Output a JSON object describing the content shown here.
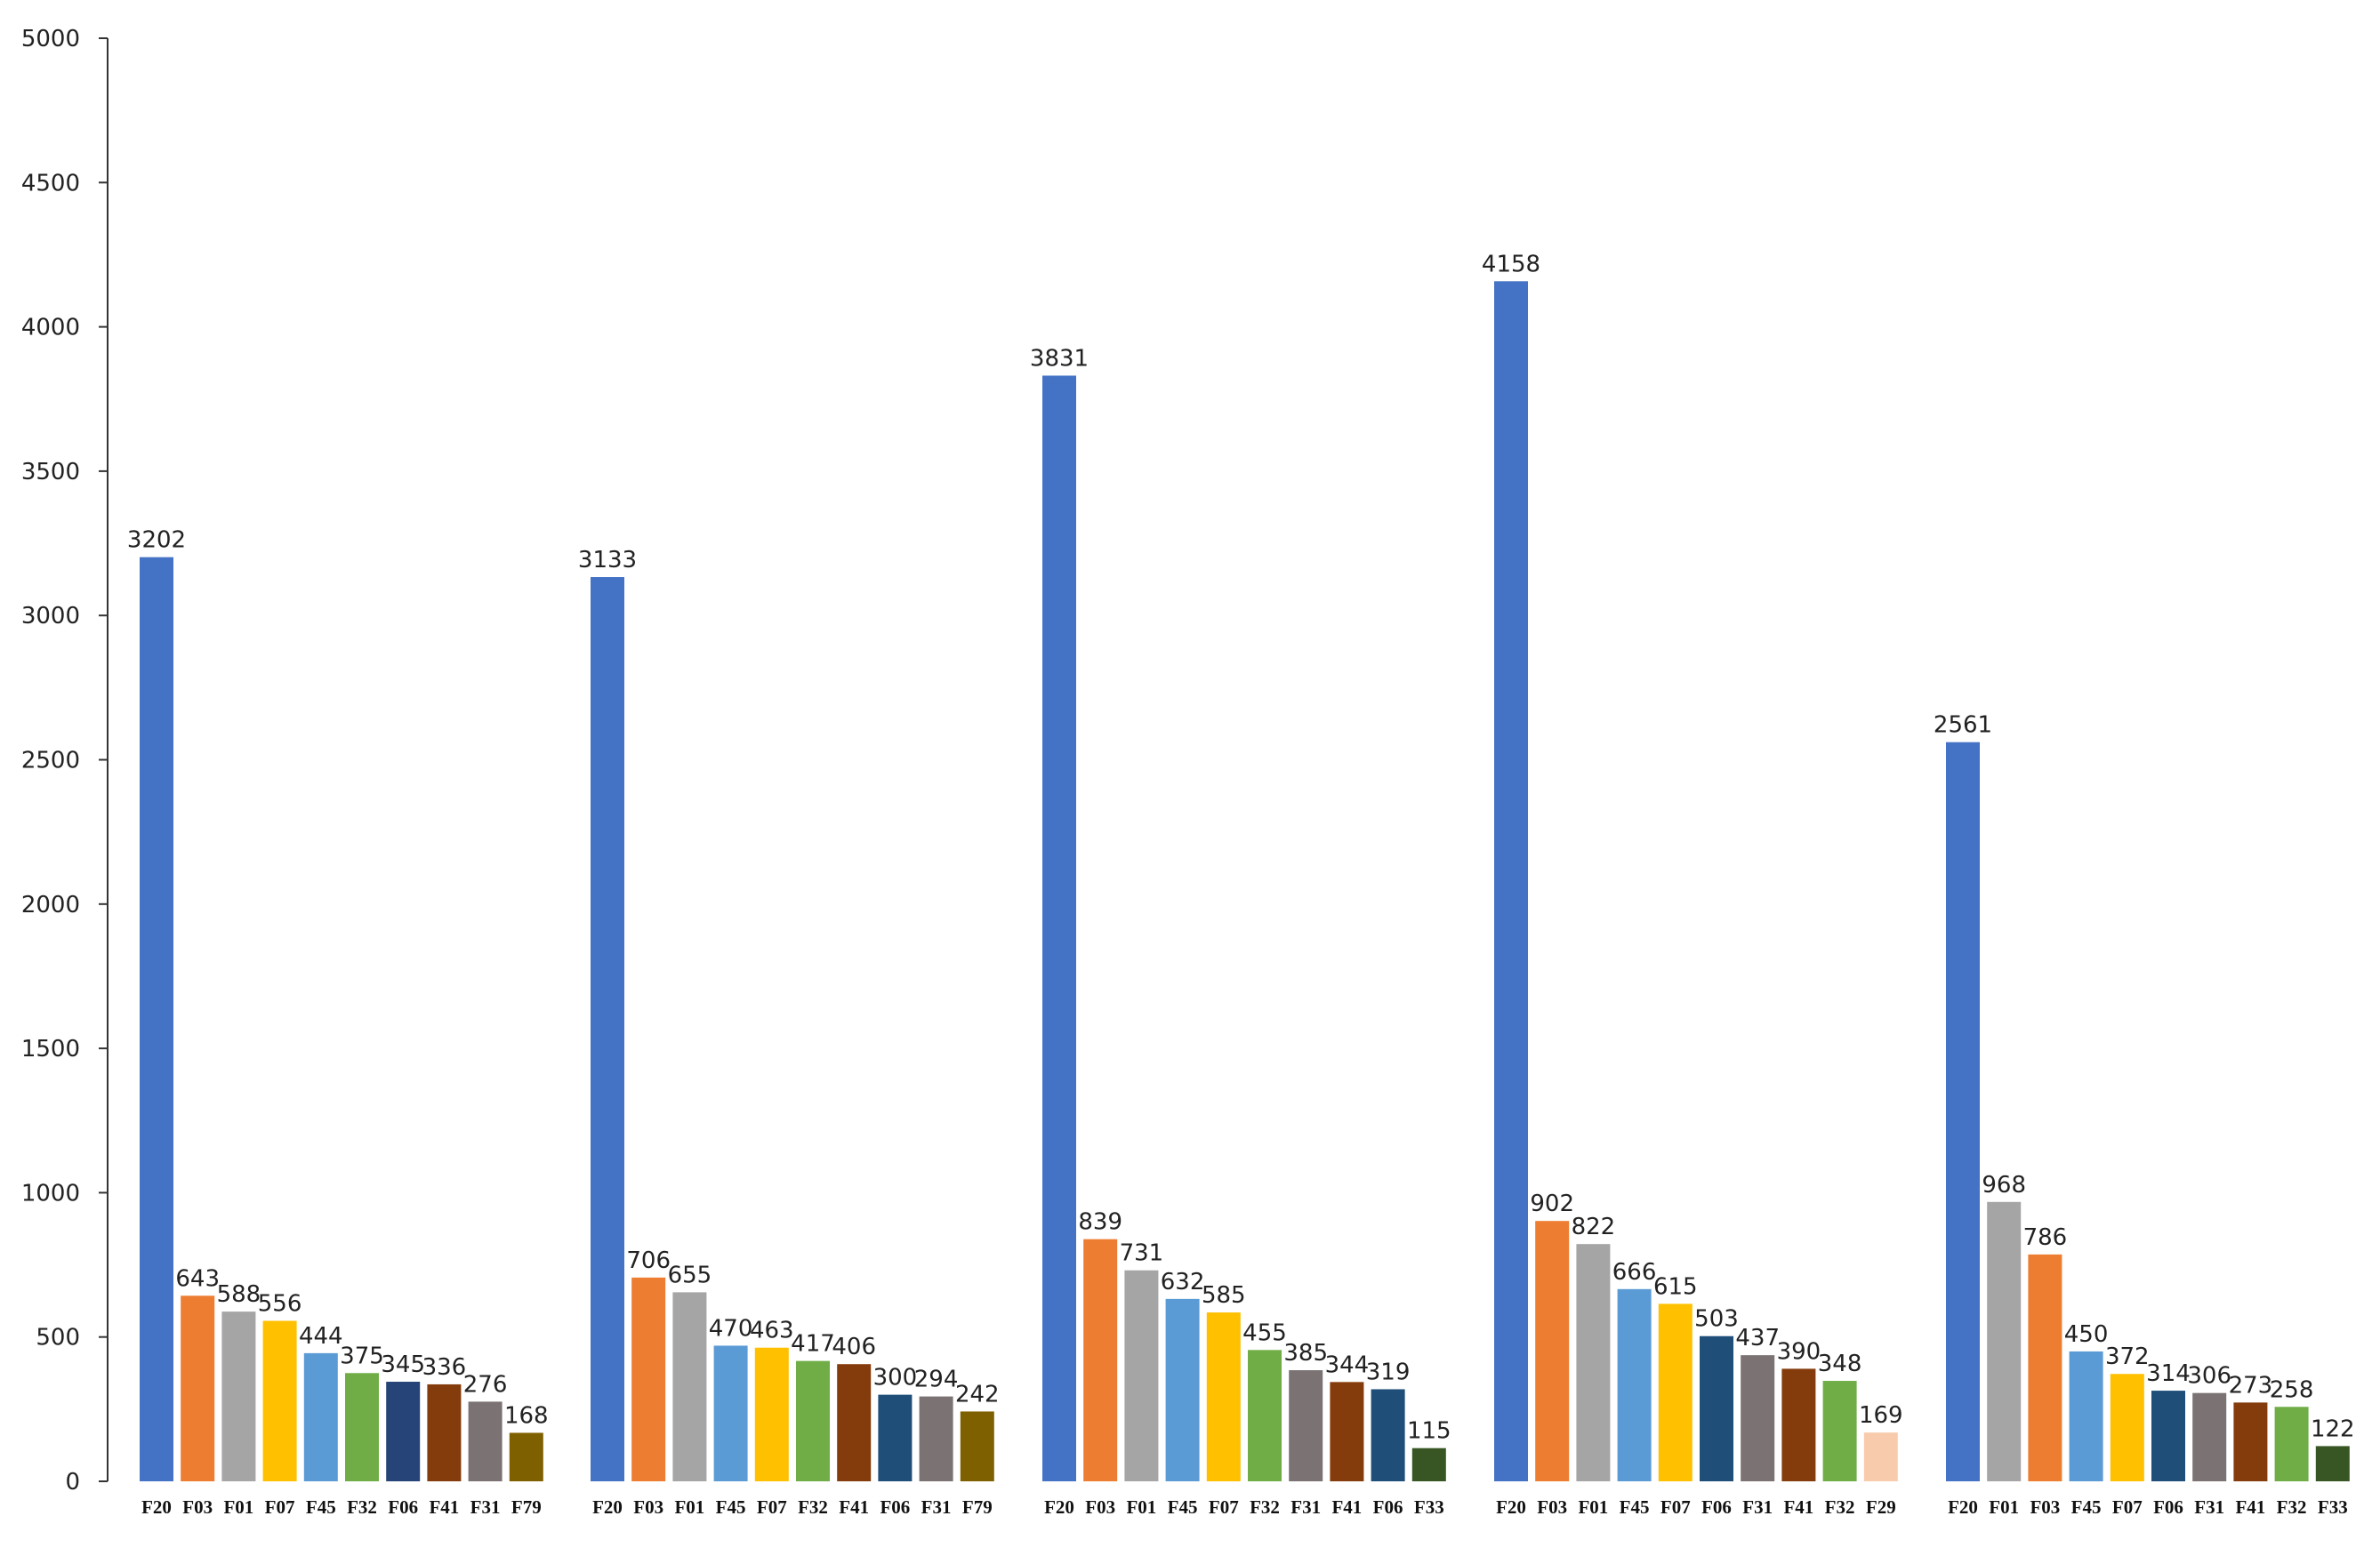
{
  "chart_data": {
    "type": "bar",
    "title": "",
    "xlabel": "",
    "ylabel": "",
    "ylim": [
      0,
      5000
    ],
    "yticks": [
      0,
      500,
      1000,
      1500,
      2000,
      2500,
      3000,
      3500,
      4000,
      4500,
      5000
    ],
    "grid": false,
    "legend": "none",
    "groups": [
      {
        "categories": [
          "F20",
          "F03",
          "F01",
          "F07",
          "F45",
          "F32",
          "F06",
          "F41",
          "F31",
          "F79"
        ],
        "values": [
          3202,
          643,
          588,
          556,
          444,
          375,
          345,
          336,
          276,
          168
        ],
        "colors": [
          "#4472C4",
          "#ED7D31",
          "#A5A5A5",
          "#FFC000",
          "#5B9BD5",
          "#70AD47",
          "#264478",
          "#843C0C",
          "#7B7373",
          "#7F6000"
        ]
      },
      {
        "categories": [
          "F20",
          "F03",
          "F01",
          "F45",
          "F07",
          "F32",
          "F41",
          "F06",
          "F31",
          "F79"
        ],
        "values": [
          3133,
          706,
          655,
          470,
          463,
          417,
          406,
          300,
          294,
          242
        ],
        "colors": [
          "#4472C4",
          "#ED7D31",
          "#A5A5A5",
          "#5B9BD5",
          "#FFC000",
          "#70AD47",
          "#843C0C",
          "#1F4E79",
          "#7B7373",
          "#7F6000"
        ]
      },
      {
        "categories": [
          "F20",
          "F03",
          "F01",
          "F45",
          "F07",
          "F32",
          "F31",
          "F41",
          "F06",
          "F33"
        ],
        "values": [
          3831,
          839,
          731,
          632,
          585,
          455,
          385,
          344,
          319,
          115
        ],
        "colors": [
          "#4472C4",
          "#ED7D31",
          "#A5A5A5",
          "#5B9BD5",
          "#FFC000",
          "#70AD47",
          "#7B7373",
          "#843C0C",
          "#1F4E79",
          "#375623"
        ]
      },
      {
        "categories": [
          "F20",
          "F03",
          "F01",
          "F45",
          "F07",
          "F06",
          "F31",
          "F41",
          "F32",
          "F29"
        ],
        "values": [
          4158,
          902,
          822,
          666,
          615,
          503,
          437,
          390,
          348,
          169
        ],
        "colors": [
          "#4472C4",
          "#ED7D31",
          "#A5A5A5",
          "#5B9BD5",
          "#FFC000",
          "#1F4E79",
          "#7B7373",
          "#843C0C",
          "#70AD47",
          "#F8CBAD"
        ]
      },
      {
        "categories": [
          "F20",
          "F01",
          "F03",
          "F45",
          "F07",
          "F06",
          "F31",
          "F41",
          "F32",
          "F33"
        ],
        "values": [
          2561,
          968,
          786,
          450,
          372,
          314,
          306,
          273,
          258,
          122
        ],
        "colors": [
          "#4472C4",
          "#A5A5A5",
          "#ED7D31",
          "#5B9BD5",
          "#FFC000",
          "#1F4E79",
          "#7B7373",
          "#843C0C",
          "#70AD47",
          "#375623"
        ]
      }
    ]
  }
}
